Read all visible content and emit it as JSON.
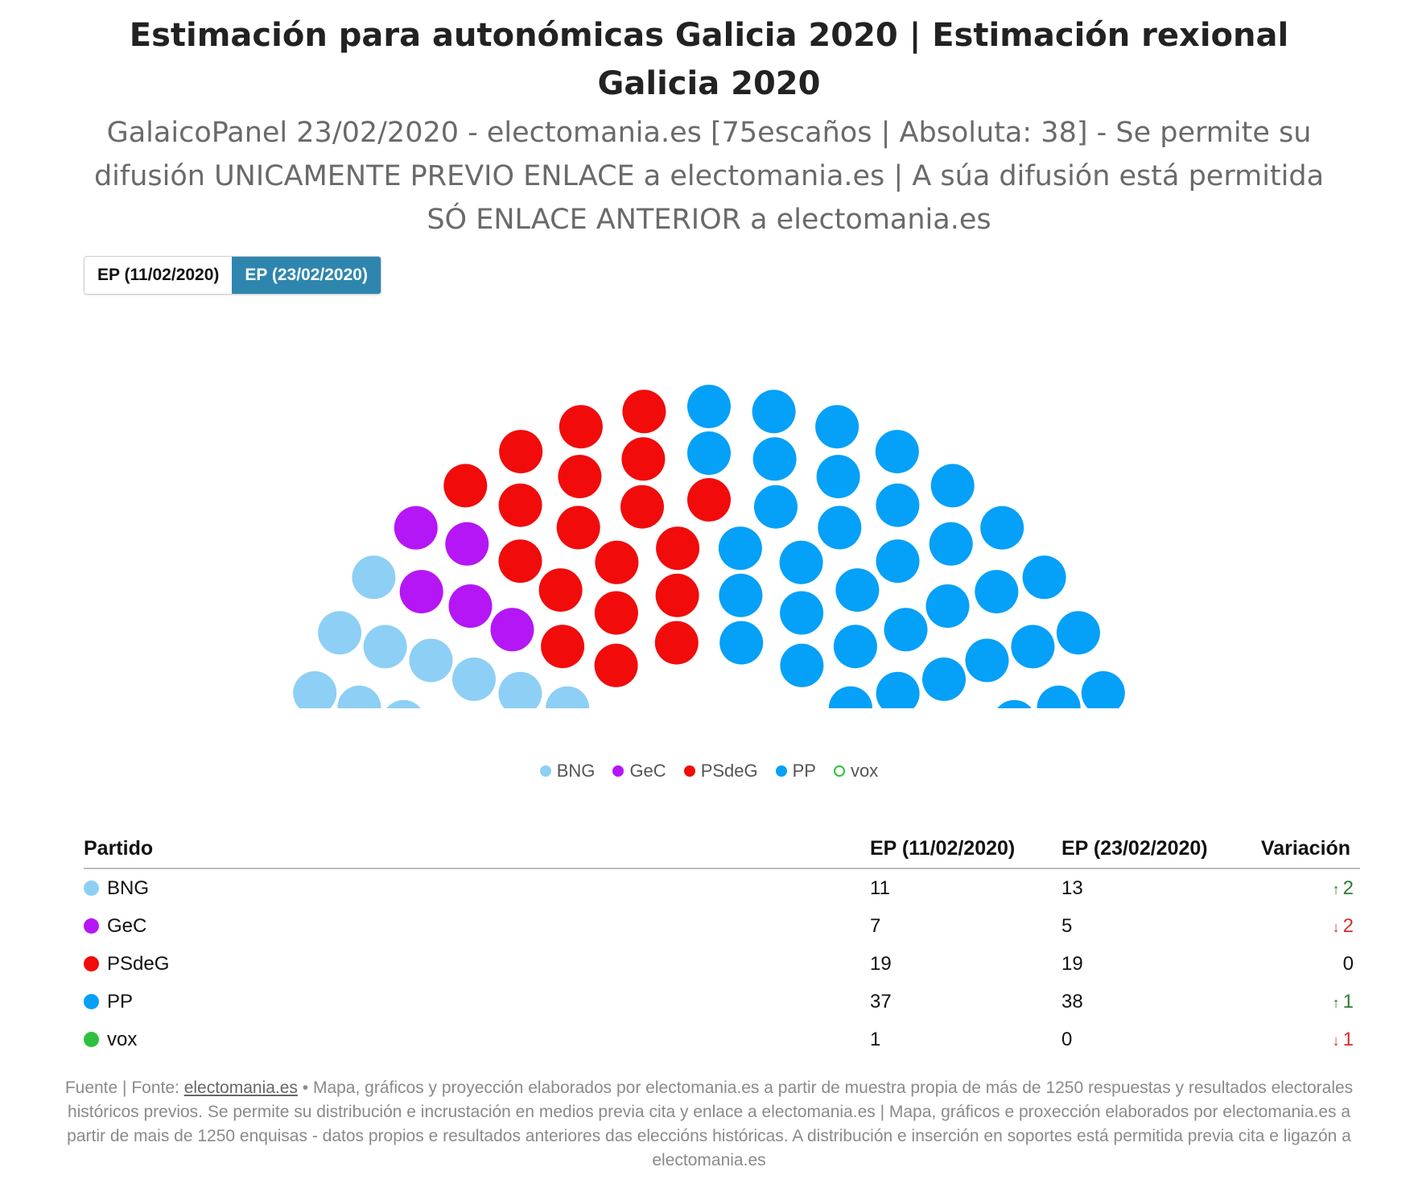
{
  "title": "Estimación para autonómicas Galicia 2020 | Estimación rexional Galicia 2020",
  "subtitle": "GalaicoPanel 23/02/2020 - electomania.es [75escaños | Absoluta: 38] - Se permite su difusión UNICAMENTE PREVIO ENLACE a electomania.es | A súa difusión está permitida SÓ ENLACE ANTERIOR a electomania.es",
  "tabs": [
    {
      "label": "EP (11/02/2020)",
      "active": false
    },
    {
      "label": "EP (23/02/2020)",
      "active": true
    }
  ],
  "legend": [
    {
      "name": "BNG",
      "color": "#8ecff5",
      "hollow": false
    },
    {
      "name": "GeC",
      "color": "#b516f5",
      "hollow": false
    },
    {
      "name": "PSdeG",
      "color": "#f10b0b",
      "hollow": false
    },
    {
      "name": "PP",
      "color": "#05a0f8",
      "hollow": false
    },
    {
      "name": "vox",
      "color": "#2ec13d",
      "hollow": true
    }
  ],
  "table": {
    "headers": {
      "party": "Partido",
      "col1": "EP (11/02/2020)",
      "col2": "EP (23/02/2020)",
      "variation": "Variación"
    },
    "rows": [
      {
        "party": "BNG",
        "color": "#8ecff5",
        "ep1": "11",
        "ep2": "13",
        "variation": "2",
        "direction": "up"
      },
      {
        "party": "GeC",
        "color": "#b516f5",
        "ep1": "7",
        "ep2": "5",
        "variation": "2",
        "direction": "down"
      },
      {
        "party": "PSdeG",
        "color": "#f10b0b",
        "ep1": "19",
        "ep2": "19",
        "variation": "0",
        "direction": "none"
      },
      {
        "party": "PP",
        "color": "#05a0f8",
        "ep1": "37",
        "ep2": "38",
        "variation": "1",
        "direction": "up"
      },
      {
        "party": "vox",
        "color": "#2ec13d",
        "ep1": "1",
        "ep2": "0",
        "variation": "1",
        "direction": "down"
      }
    ]
  },
  "footer": {
    "prefix": "Fuente | Fonte: ",
    "link": "electomania.es",
    "text": " • Mapa, gráficos y proyección elaborados por electomania.es a partir de muestra propia de más de 1250 respuestas y resultados electorales históricos previos. Se permite su distribución e incrustación en medios previa cita y enlace a electomania.es | Mapa, gráficos e proxección elaborados por electomania.es a partir de mais de 1250 enquisas - datos propios e resultados anteriores das eleccións históricas. A distribución e inserción en soportes está permitida previa cita e ligazón a electomania.es"
  },
  "chart_data": {
    "type": "parliament",
    "total_seats": 75,
    "majority": 38,
    "categories": [
      "BNG",
      "GeC",
      "PSdeG",
      "PP",
      "vox"
    ],
    "series": [
      {
        "name": "EP (11/02/2020)",
        "values": [
          11,
          7,
          19,
          37,
          1
        ]
      },
      {
        "name": "EP (23/02/2020)",
        "values": [
          13,
          5,
          19,
          38,
          0
        ]
      }
    ],
    "shown_series": "EP (23/02/2020)",
    "colors": {
      "BNG": "#8ecff5",
      "GeC": "#b516f5",
      "PSdeG": "#f10b0b",
      "PP": "#05a0f8",
      "vox": "#2ec13d"
    }
  }
}
